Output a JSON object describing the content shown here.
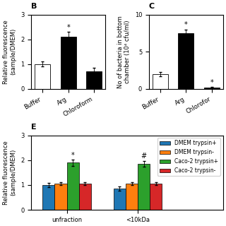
{
  "chart_data": [
    {
      "type": "bar",
      "title": "B",
      "categories": [
        "Buffer",
        "Arg",
        "Chloroform"
      ],
      "values": [
        1.0,
        2.1,
        0.7
      ],
      "errors": [
        0.1,
        0.2,
        0.15
      ],
      "colors": [
        "white",
        "black",
        "black"
      ],
      "ylabel": "Relative fluorescence\n(sample/DMEM)",
      "ylim": [
        0,
        3
      ],
      "yticks": [
        0,
        1,
        2,
        3
      ],
      "annotations": [
        {
          "text": "*",
          "category": "Arg"
        }
      ]
    },
    {
      "type": "bar",
      "title": "C",
      "categories": [
        "Buffer",
        "Arg",
        "Chlorofor"
      ],
      "values": [
        2.0,
        7.5,
        0.2
      ],
      "errors": [
        0.3,
        0.5,
        0.05
      ],
      "colors": [
        "white",
        "black",
        "black"
      ],
      "ylabel": "No of bacteria in bottom\nchamber (10⁴ cfu/ml)",
      "ylim": [
        0,
        10
      ],
      "yticks": [
        0,
        5,
        10
      ],
      "annotations": [
        {
          "text": "*",
          "category": "Arg"
        },
        {
          "text": "*",
          "category": "Chlorofor"
        }
      ]
    },
    {
      "type": "bar",
      "title": "E",
      "categories": [
        "unfraction",
        "<10kDa"
      ],
      "series": [
        {
          "name": "DMEM trypsin+",
          "values": [
            1.0,
            0.85
          ],
          "errors": [
            0.08,
            0.08
          ]
        },
        {
          "name": "DMEM trypsin-",
          "values": [
            1.05,
            1.05
          ],
          "errors": [
            0.05,
            0.05
          ]
        },
        {
          "name": "Caco-2 trypsin+",
          "values": [
            1.9,
            1.85
          ],
          "errors": [
            0.12,
            0.12
          ]
        },
        {
          "name": "Caco-2 trypsin-",
          "values": [
            1.05,
            1.05
          ],
          "errors": [
            0.05,
            0.05
          ]
        }
      ],
      "ylabel": "Relative fluorescence\n(sample/DMEM)",
      "ylim": [
        0,
        3
      ],
      "yticks": [
        0,
        1,
        2,
        3
      ],
      "legend": "upper right",
      "annotations": [
        {
          "text": "*",
          "category": "unfraction",
          "series": "Caco-2 trypsin+"
        },
        {
          "text": "#",
          "category": "<10kDa",
          "series": "Caco-2 trypsin+"
        }
      ]
    }
  ]
}
